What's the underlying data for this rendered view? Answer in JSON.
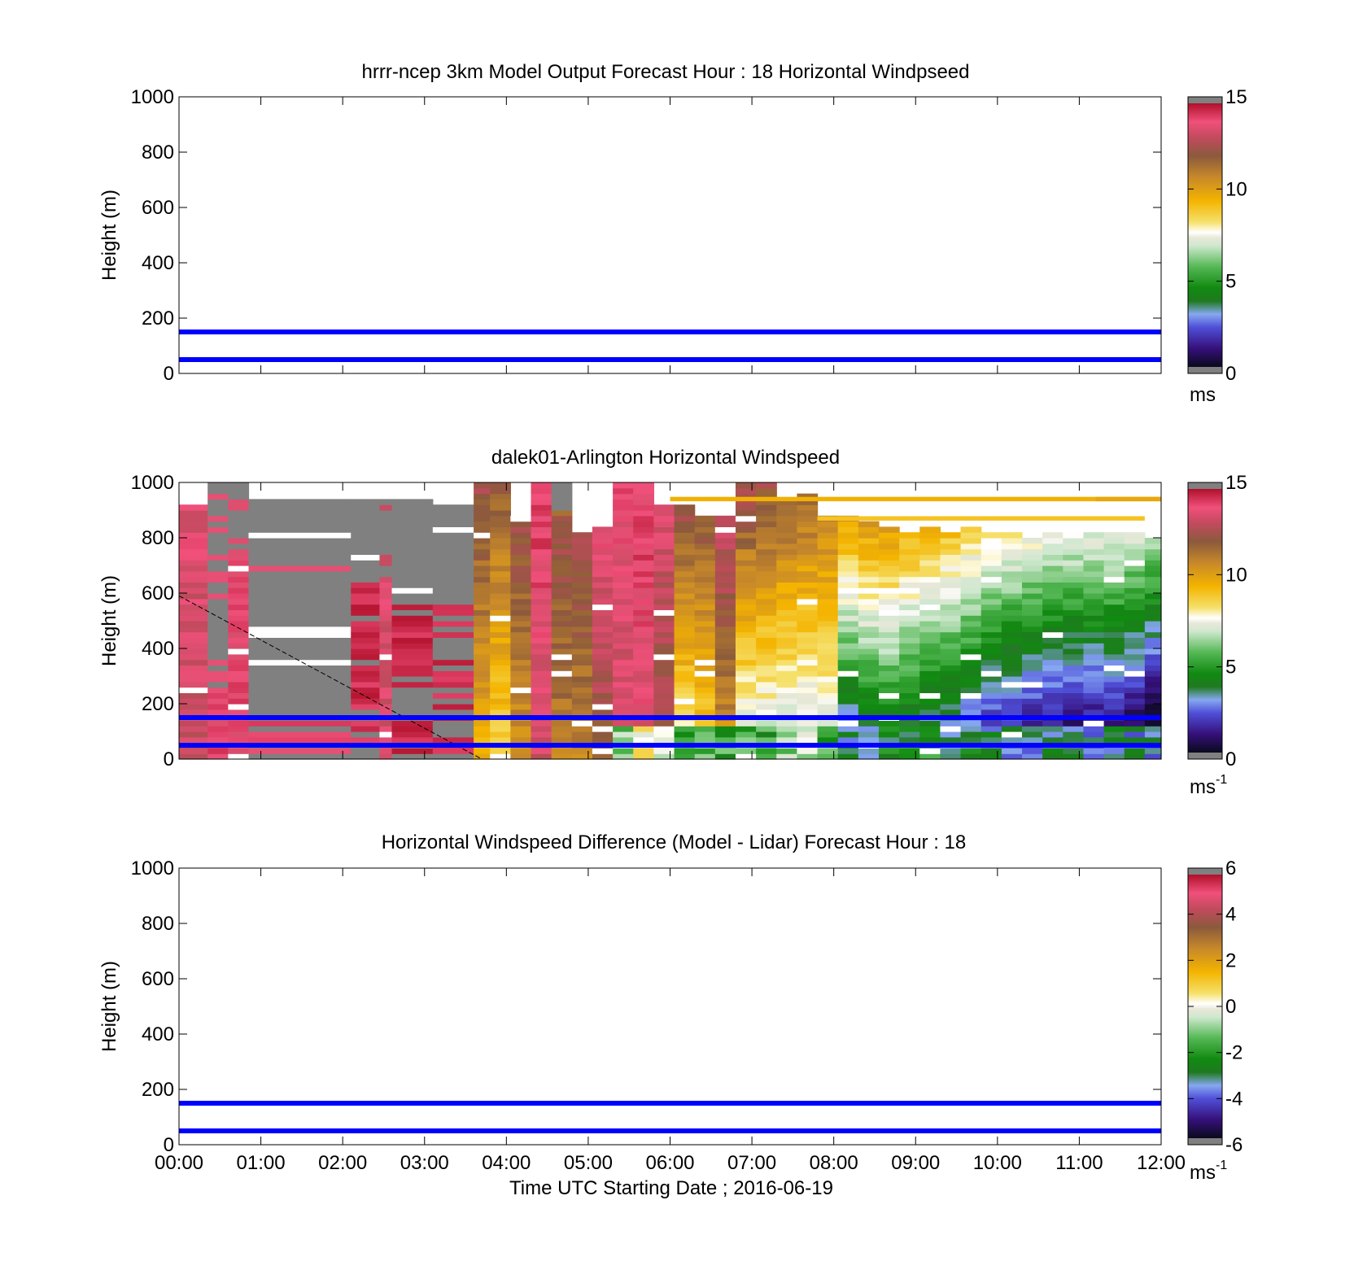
{
  "figure": {
    "xlabel": "Time UTC  Starting Date ; 2016-06-19",
    "x_ticks": [
      "00:00",
      "01:00",
      "02:00",
      "03:00",
      "04:00",
      "05:00",
      "06:00",
      "07:00",
      "08:00",
      "09:00",
      "10:00",
      "11:00",
      "12:00"
    ],
    "y_ticks": [
      "0",
      "200",
      "400",
      "600",
      "800",
      "1000"
    ],
    "ylabel": "Height (m)",
    "colors": {
      "reference_lines": "#0000ff",
      "missing": "#808080",
      "no_data": "#ffffff"
    }
  },
  "chart_data": [
    {
      "type": "heatmap",
      "id": "model",
      "title": "hrrr-ncep 3km Model Output   Forecast Hour : 18 Horizontal Windpseed",
      "ylabel": "Height (m)",
      "xlim": [
        0,
        12
      ],
      "ylim": [
        0,
        1000
      ],
      "reference_lines_m": [
        50,
        150
      ],
      "colorbar": {
        "ticks": [
          "0",
          "5",
          "10",
          "15"
        ],
        "range": [
          0,
          15
        ],
        "unit": "ms",
        "unit_sup": ""
      },
      "cells": []
    },
    {
      "type": "heatmap",
      "id": "lidar",
      "title": "dalek01-Arlington  Horizontal Windspeed",
      "ylabel": "Height (m)",
      "xlim": [
        0,
        12
      ],
      "ylim": [
        0,
        1000
      ],
      "reference_lines_m": [
        50,
        150
      ],
      "diagonal_line": {
        "from": [
          0.0,
          590
        ],
        "to": [
          3.7,
          0
        ]
      },
      "colorbar": {
        "ticks": [
          "0",
          "5",
          "10",
          "15"
        ],
        "range": [
          0,
          15
        ],
        "unit": "ms",
        "unit_sup": "-1"
      },
      "columns": [
        {
          "t0": 0.0,
          "t1": 0.35,
          "top": 930,
          "mode": "speed",
          "base": 13.4,
          "grad": 0.3
        },
        {
          "t0": 0.35,
          "t1": 0.6,
          "top": 1000,
          "mode": "speed",
          "base": 14.2,
          "grad": 0.2,
          "gray_above": 250
        },
        {
          "t0": 0.6,
          "t1": 0.85,
          "top": 1000,
          "mode": "speed",
          "base": 14.0,
          "grad": 0.1,
          "gray_above": 750
        },
        {
          "t0": 0.85,
          "t1": 2.1,
          "top": 940,
          "mode": "gray",
          "stripes": "red_low"
        },
        {
          "t0": 2.1,
          "t1": 2.45,
          "top": 940,
          "mode": "gray",
          "stripes": "red_mid"
        },
        {
          "t0": 2.45,
          "t1": 2.6,
          "top": 940,
          "mode": "speed",
          "base": 13.5,
          "grad": 0.2,
          "gray_above": 650
        },
        {
          "t0": 2.6,
          "t1": 3.1,
          "top": 950,
          "mode": "gray",
          "stripes": "red_col"
        },
        {
          "t0": 3.1,
          "t1": 3.6,
          "top": 930,
          "mode": "gray",
          "stripes": "red_col2"
        },
        {
          "t0": 3.6,
          "t1": 3.8,
          "top": 1000,
          "mode": "speed",
          "base": 11.0,
          "grad": 1.5
        },
        {
          "t0": 3.8,
          "t1": 4.05,
          "top": 1000,
          "mode": "speed",
          "base": 10.2,
          "grad": 1.8
        },
        {
          "t0": 4.05,
          "t1": 4.3,
          "top": 880,
          "mode": "speed",
          "base": 11.5,
          "grad": 1.2
        },
        {
          "t0": 4.3,
          "t1": 4.55,
          "top": 1000,
          "mode": "speed",
          "base": 13.8,
          "grad": 0.5
        },
        {
          "t0": 4.55,
          "t1": 4.8,
          "top": 1000,
          "mode": "speed",
          "base": 11.8,
          "grad": 0.8,
          "gray_above": 880
        },
        {
          "t0": 4.8,
          "t1": 5.05,
          "top": 830,
          "mode": "speed",
          "base": 12.0,
          "grad": 1.2
        },
        {
          "t0": 5.05,
          "t1": 5.3,
          "top": 850,
          "mode": "speed",
          "base": 13.2,
          "grad": 1.2
        },
        {
          "t0": 5.3,
          "t1": 5.55,
          "top": 1000,
          "mode": "speed",
          "base": 13.6,
          "grad": 0.4,
          "low": 6.0
        },
        {
          "t0": 5.55,
          "t1": 5.8,
          "top": 1000,
          "mode": "speed",
          "base": 13.9,
          "grad": 0.3,
          "low": 7.5
        },
        {
          "t0": 5.8,
          "t1": 6.05,
          "top": 930,
          "mode": "speed",
          "base": 12.8,
          "grad": 0.9,
          "low": 7.0
        },
        {
          "t0": 6.05,
          "t1": 6.3,
          "top": 930,
          "mode": "speed",
          "base": 10.2,
          "grad": 2.6,
          "low": 5.0
        },
        {
          "t0": 6.3,
          "t1": 6.55,
          "top": 880,
          "mode": "speed",
          "base": 10.5,
          "grad": 2.2,
          "low": 5.5
        },
        {
          "t0": 6.55,
          "t1": 6.8,
          "top": 880,
          "mode": "speed",
          "base": 12.0,
          "grad": 1.8,
          "low": 5.0
        },
        {
          "t0": 6.8,
          "t1": 7.05,
          "top": 1000,
          "mode": "speed",
          "base": 9.6,
          "grad": 3.2,
          "low": 5.5
        },
        {
          "t0": 7.05,
          "t1": 7.3,
          "top": 1000,
          "mode": "speed",
          "base": 9.4,
          "grad": 3.0,
          "low": 5.0
        },
        {
          "t0": 7.3,
          "t1": 7.55,
          "top": 940,
          "mode": "speed",
          "base": 9.2,
          "grad": 2.8,
          "low": 6.0
        },
        {
          "t0": 7.55,
          "t1": 7.8,
          "top": 960,
          "mode": "speed",
          "base": 9.0,
          "grad": 2.8,
          "low": 6.5
        },
        {
          "t0": 7.8,
          "t1": 8.05,
          "top": 890,
          "mode": "speed",
          "base": 9.0,
          "grad": 2.6,
          "low": 5.5
        },
        {
          "t0": 8.05,
          "t1": 8.3,
          "top": 880,
          "mode": "speed",
          "base": 6.6,
          "grad": 4.8,
          "low": 3.5
        },
        {
          "t0": 8.3,
          "t1": 8.55,
          "top": 870,
          "mode": "speed",
          "base": 7.0,
          "grad": 4.5,
          "low": 3.8
        },
        {
          "t0": 8.55,
          "t1": 8.8,
          "top": 850,
          "mode": "speed",
          "base": 7.2,
          "grad": 4.2,
          "low": 4.0
        },
        {
          "t0": 8.8,
          "t1": 9.05,
          "top": 830,
          "mode": "speed",
          "base": 6.8,
          "grad": 4.2,
          "low": 4.2
        },
        {
          "t0": 9.05,
          "t1": 9.3,
          "top": 840,
          "mode": "speed",
          "base": 6.6,
          "grad": 4.4,
          "low": 4.5
        },
        {
          "t0": 9.3,
          "t1": 9.55,
          "top": 830,
          "mode": "speed",
          "base": 6.2,
          "grad": 4.4,
          "low": 4.0
        },
        {
          "t0": 9.55,
          "t1": 9.8,
          "top": 850,
          "mode": "speed",
          "base": 5.8,
          "grad": 4.4,
          "low": 3.8
        },
        {
          "t0": 9.8,
          "t1": 10.05,
          "top": 820,
          "mode": "speed",
          "base": 5.3,
          "grad": 4.6,
          "low": 3.5
        },
        {
          "t0": 10.05,
          "t1": 10.3,
          "top": 830,
          "mode": "speed",
          "base": 5.0,
          "grad": 4.6,
          "low": 3.2
        },
        {
          "t0": 10.3,
          "t1": 10.55,
          "top": 810,
          "mode": "speed",
          "base": 4.8,
          "grad": 4.7,
          "low": 3.0
        },
        {
          "t0": 10.55,
          "t1": 10.8,
          "top": 820,
          "mode": "speed",
          "base": 4.6,
          "grad": 4.6,
          "low": 3.4
        },
        {
          "t0": 10.8,
          "t1": 11.05,
          "top": 820,
          "mode": "speed",
          "base": 4.4,
          "grad": 4.8,
          "low": 3.2
        },
        {
          "t0": 11.05,
          "t1": 11.3,
          "top": 820,
          "mode": "speed",
          "base": 4.4,
          "grad": 4.6,
          "low": 3.0
        },
        {
          "t0": 11.3,
          "t1": 11.55,
          "top": 830,
          "mode": "speed",
          "base": 4.5,
          "grad": 4.6,
          "low": 3.4
        },
        {
          "t0": 11.55,
          "t1": 11.8,
          "top": 820,
          "mode": "speed",
          "base": 4.2,
          "grad": 4.8,
          "low": 3.2
        },
        {
          "t0": 11.8,
          "t1": 12.0,
          "top": 800,
          "mode": "speed",
          "base": 3.6,
          "grad": 5.2,
          "low": 3.0
        }
      ],
      "upper_streaks": [
        {
          "t0": 6.0,
          "t1": 12.0,
          "h": 940,
          "v": 9.5
        },
        {
          "t0": 7.8,
          "t1": 11.8,
          "h": 870,
          "v": 9.0
        },
        {
          "t0": 11.2,
          "t1": 12.0,
          "h": 940,
          "v": 9.8
        }
      ]
    },
    {
      "type": "heatmap",
      "id": "difference",
      "title": "Horizontal Windspeed Difference (Model - Lidar) Forecast Hour : 18",
      "ylabel": "Height (m)",
      "xlim": [
        0,
        12
      ],
      "ylim": [
        0,
        1000
      ],
      "reference_lines_m": [
        50,
        150
      ],
      "colorbar": {
        "ticks": [
          "-6",
          "-4",
          "-2",
          "0",
          "2",
          "4",
          "6"
        ],
        "range": [
          -6,
          6
        ],
        "unit": "ms",
        "unit_sup": "-1"
      },
      "cells": []
    }
  ]
}
